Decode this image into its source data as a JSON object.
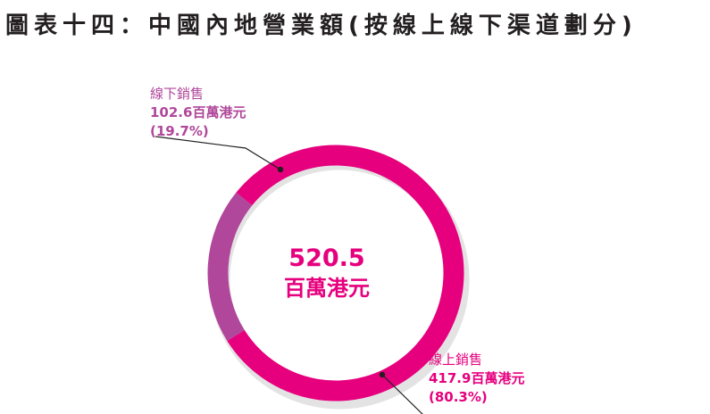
{
  "title": "圖表十四：中國內地營業額(按線上線下渠道劃分)",
  "center": {
    "total": "520.5",
    "unit": "百萬港元"
  },
  "colors": {
    "online": "#e6007e",
    "offline": "#b0479a",
    "shadow": "#e3e3e3",
    "leader": "#231f20"
  },
  "chart_data": {
    "type": "pie",
    "donut": true,
    "title": "圖表十四：中國內地營業額(按線上線下渠道劃分)",
    "total": 520.5,
    "unit": "百萬港元",
    "slices": [
      {
        "name": "線下銷售",
        "value": 102.6,
        "percent": 19.7,
        "value_label": "102.6百萬港元",
        "pct_label": "(19.7%)"
      },
      {
        "name": "線上銷售",
        "value": 417.9,
        "percent": 80.3,
        "value_label": "417.9百萬港元",
        "pct_label": "(80.3%)"
      }
    ]
  }
}
